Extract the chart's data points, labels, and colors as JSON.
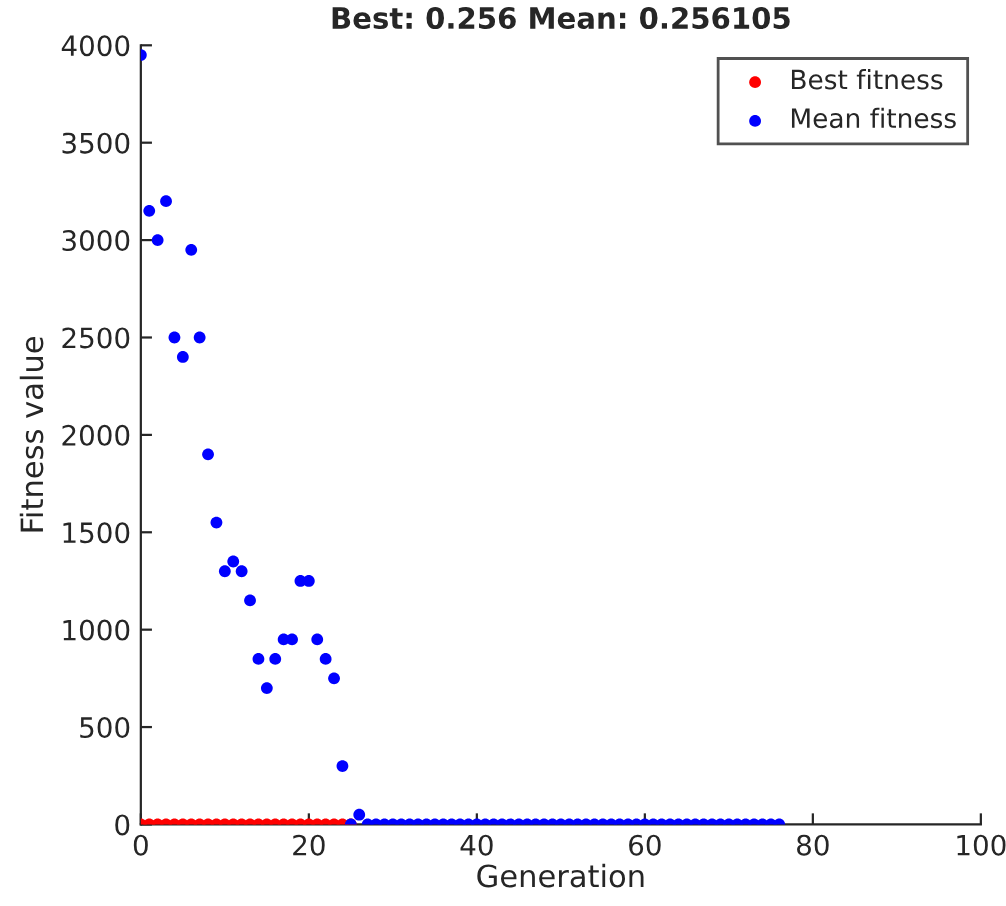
{
  "chart_data": {
    "type": "scatter",
    "title": "Best: 0.256 Mean: 0.256105",
    "xlabel": "Generation",
    "ylabel": "Fitness value",
    "xlim": [
      0,
      100
    ],
    "xticks": [
      0,
      20,
      40,
      60,
      80,
      100
    ],
    "ylim": [
      0,
      4000
    ],
    "yticks": [
      0,
      500,
      1000,
      1500,
      2000,
      2500,
      3000,
      3500,
      4000
    ],
    "series": [
      {
        "name": "Best fitness",
        "color": "#ff0000",
        "x": [
          0,
          1,
          2,
          3,
          4,
          5,
          6,
          7,
          8,
          9,
          10,
          11,
          12,
          13,
          14,
          15,
          16,
          17,
          18,
          19,
          20,
          21,
          22,
          23,
          24,
          25
        ],
        "values": [
          0,
          0,
          0,
          0,
          0,
          0,
          0,
          0,
          0,
          0,
          0,
          0,
          0,
          0,
          0,
          0,
          0,
          0,
          0,
          0,
          0,
          0,
          0,
          0,
          0,
          0
        ]
      },
      {
        "name": "Mean fitness",
        "color": "#0000ff",
        "x": [
          0,
          1,
          2,
          3,
          4,
          5,
          6,
          7,
          8,
          9,
          10,
          11,
          12,
          13,
          14,
          15,
          16,
          17,
          18,
          19,
          20,
          21,
          22,
          23,
          24,
          25,
          26,
          27,
          28,
          29,
          30,
          31,
          32,
          33,
          34,
          35,
          36,
          37,
          38,
          39,
          40,
          41,
          42,
          43,
          44,
          45,
          46,
          47,
          48,
          49,
          50,
          51,
          52,
          53,
          54,
          55,
          56,
          57,
          58,
          59,
          60,
          61,
          62,
          63,
          64,
          65,
          66,
          67,
          68,
          69,
          70,
          71,
          72,
          73,
          74,
          75,
          76
        ],
        "values": [
          3950,
          3150,
          3000,
          3200,
          2500,
          2400,
          2950,
          2500,
          1900,
          1550,
          1300,
          1350,
          1300,
          1150,
          850,
          700,
          850,
          950,
          950,
          1250,
          1250,
          950,
          850,
          750,
          300,
          0,
          50,
          0,
          0,
          0,
          0,
          0,
          0,
          0,
          0,
          0,
          0,
          0,
          0,
          0,
          0,
          0,
          0,
          0,
          0,
          0,
          0,
          0,
          0,
          0,
          0,
          0,
          0,
          0,
          0,
          0,
          0,
          0,
          0,
          0,
          0,
          0,
          0,
          0,
          0,
          0,
          0,
          0,
          0,
          0,
          0,
          0,
          0,
          0,
          0,
          0,
          0
        ]
      }
    ],
    "marker": "circle",
    "legend": "top right",
    "grid": false
  }
}
